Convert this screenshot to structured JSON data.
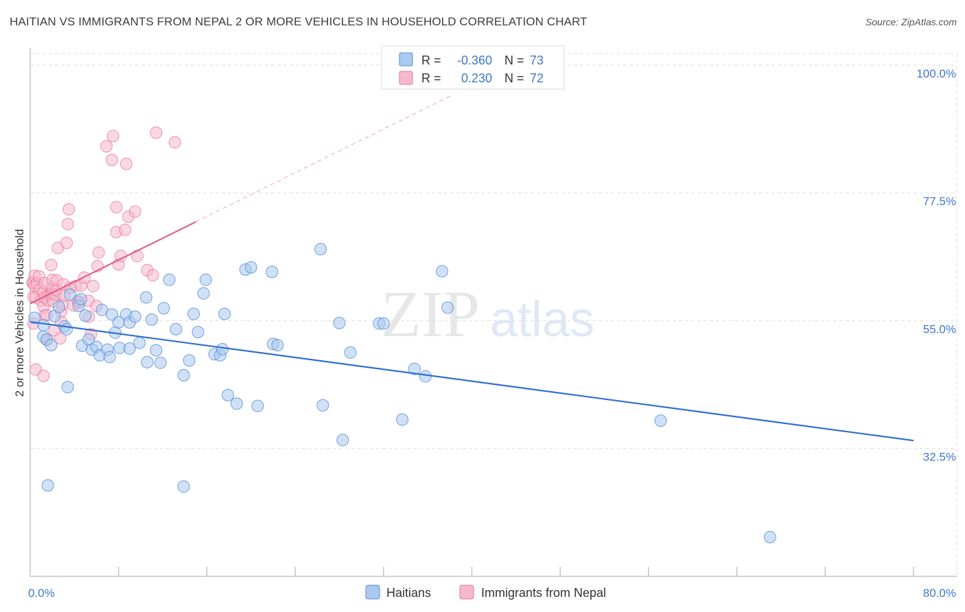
{
  "title": "HAITIAN VS IMMIGRANTS FROM NEPAL 2 OR MORE VEHICLES IN HOUSEHOLD CORRELATION CHART",
  "source": "Source: ZipAtlas.com",
  "watermark": {
    "part1": "ZIP",
    "part2": "atlas"
  },
  "colors": {
    "blue_fill": "#a9c9f0",
    "blue_stroke": "#5a8fd6",
    "blue_line": "#2f6fd0",
    "pink_fill": "#f6b8cc",
    "pink_stroke": "#e8799c",
    "pink_line": "#e0608c",
    "axis_text": "#3f76c8",
    "grid": "#dedede"
  },
  "legend": {
    "rows": [
      {
        "r_label": "R = ",
        "r_value": "-0.360",
        "n_label": "N = ",
        "n_value": "73"
      },
      {
        "r_label": "R = ",
        "r_value": "0.230",
        "n_label": "N = ",
        "n_value": "72"
      }
    ]
  },
  "chart_data": {
    "type": "scatter",
    "title": "HAITIAN VS IMMIGRANTS FROM NEPAL 2 OR MORE VEHICLES IN HOUSEHOLD CORRELATION CHART",
    "xlabel": "",
    "ylabel": "2 or more Vehicles in Household",
    "xlim": [
      0,
      80
    ],
    "ylim": [
      10,
      103
    ],
    "x_tick_labels": [
      "0.0%",
      "80.0%"
    ],
    "y_ticks": [
      32.5,
      55.0,
      77.5,
      100.0
    ],
    "y_tick_labels": [
      "32.5%",
      "55.0%",
      "77.5%",
      "100.0%"
    ],
    "grid": true,
    "legend_position": "top-center",
    "series": [
      {
        "name": "Haitians",
        "r": -0.36,
        "n": 73,
        "trend": {
          "x": [
            0,
            80
          ],
          "y": [
            54.8,
            33.9
          ]
        },
        "points": [
          [
            0.4,
            55.5
          ],
          [
            1.2,
            54.2
          ],
          [
            1.2,
            52.2
          ],
          [
            1.5,
            51.7
          ],
          [
            1.9,
            50.7
          ],
          [
            2.2,
            55.8
          ],
          [
            2.6,
            57.4
          ],
          [
            3.1,
            54.0
          ],
          [
            3.3,
            53.5
          ],
          [
            3.4,
            43.3
          ],
          [
            3.6,
            59.6
          ],
          [
            4.4,
            57.6
          ],
          [
            4.6,
            58.8
          ],
          [
            4.7,
            50.6
          ],
          [
            5.0,
            55.9
          ],
          [
            5.3,
            51.7
          ],
          [
            5.6,
            49.9
          ],
          [
            6.0,
            50.4
          ],
          [
            6.3,
            48.9
          ],
          [
            6.5,
            56.9
          ],
          [
            7.0,
            49.9
          ],
          [
            7.2,
            48.6
          ],
          [
            7.4,
            56.1
          ],
          [
            7.7,
            52.9
          ],
          [
            8.0,
            54.7
          ],
          [
            8.1,
            50.2
          ],
          [
            8.7,
            56.1
          ],
          [
            9.0,
            50.1
          ],
          [
            9.0,
            54.7
          ],
          [
            9.5,
            55.7
          ],
          [
            9.9,
            51.1
          ],
          [
            10.5,
            59.1
          ],
          [
            10.6,
            47.7
          ],
          [
            11.0,
            55.2
          ],
          [
            11.4,
            49.8
          ],
          [
            11.8,
            47.6
          ],
          [
            12.1,
            57.2
          ],
          [
            12.6,
            62.2
          ],
          [
            13.2,
            53.5
          ],
          [
            13.9,
            45.4
          ],
          [
            14.4,
            48.0
          ],
          [
            14.8,
            56.2
          ],
          [
            15.2,
            53.0
          ],
          [
            15.7,
            59.8
          ],
          [
            15.9,
            62.2
          ],
          [
            16.7,
            49.1
          ],
          [
            17.2,
            48.9
          ],
          [
            17.4,
            50.0
          ],
          [
            17.6,
            56.2
          ],
          [
            17.9,
            41.9
          ],
          [
            18.7,
            40.4
          ],
          [
            19.5,
            64.0
          ],
          [
            20.0,
            64.4
          ],
          [
            20.6,
            40.0
          ],
          [
            21.9,
            63.6
          ],
          [
            22.0,
            50.9
          ],
          [
            22.4,
            50.7
          ],
          [
            26.3,
            67.6
          ],
          [
            26.5,
            40.1
          ],
          [
            28.0,
            54.6
          ],
          [
            28.3,
            34.0
          ],
          [
            29.0,
            49.4
          ],
          [
            31.6,
            54.5
          ],
          [
            32.0,
            54.5
          ],
          [
            33.7,
            37.6
          ],
          [
            34.8,
            46.5
          ],
          [
            35.8,
            45.2
          ],
          [
            37.3,
            63.7
          ],
          [
            37.8,
            57.3
          ],
          [
            57.1,
            37.4
          ],
          [
            1.6,
            26.0
          ],
          [
            13.9,
            25.8
          ],
          [
            67.0,
            16.9
          ]
        ]
      },
      {
        "name": "Immigrants from Nepal",
        "r": 0.23,
        "n": 72,
        "trend": {
          "x": [
            0,
            15
          ],
          "y": [
            58.0,
            72.4
          ]
        },
        "trend_extension": {
          "x": [
            15,
            38
          ],
          "y": [
            72.4,
            94.5
          ]
        },
        "points": [
          [
            0.2,
            61.7
          ],
          [
            0.3,
            61.6
          ],
          [
            0.3,
            59.2
          ],
          [
            0.3,
            54.5
          ],
          [
            0.4,
            61.2
          ],
          [
            0.4,
            62.9
          ],
          [
            0.5,
            59.1
          ],
          [
            0.5,
            46.4
          ],
          [
            0.6,
            61.5
          ],
          [
            0.8,
            62.8
          ],
          [
            0.9,
            60.5
          ],
          [
            1.0,
            58.5
          ],
          [
            1.2,
            60.0
          ],
          [
            1.2,
            57.5
          ],
          [
            1.2,
            45.3
          ],
          [
            1.3,
            59.1
          ],
          [
            1.3,
            55.9
          ],
          [
            1.3,
            61.6
          ],
          [
            1.5,
            51.6
          ],
          [
            1.5,
            56.0
          ],
          [
            1.6,
            58.6
          ],
          [
            1.7,
            59.6
          ],
          [
            1.9,
            64.8
          ],
          [
            1.9,
            59.8
          ],
          [
            2.0,
            59.7
          ],
          [
            2.0,
            60.8
          ],
          [
            2.0,
            62.2
          ],
          [
            2.1,
            58.4
          ],
          [
            2.2,
            53.3
          ],
          [
            2.3,
            59.6
          ],
          [
            2.4,
            60.4
          ],
          [
            2.4,
            62.1
          ],
          [
            2.5,
            67.8
          ],
          [
            2.7,
            51.9
          ],
          [
            2.8,
            54.8
          ],
          [
            2.8,
            56.6
          ],
          [
            2.9,
            57.8
          ],
          [
            3.0,
            61.4
          ],
          [
            3.1,
            59.4
          ],
          [
            3.3,
            68.7
          ],
          [
            3.4,
            72.0
          ],
          [
            3.5,
            74.6
          ],
          [
            3.6,
            60.8
          ],
          [
            3.9,
            57.7
          ],
          [
            4.1,
            61.1
          ],
          [
            4.3,
            58.5
          ],
          [
            4.4,
            58.2
          ],
          [
            4.6,
            61.2
          ],
          [
            4.9,
            62.6
          ],
          [
            5.3,
            55.7
          ],
          [
            5.3,
            58.5
          ],
          [
            5.5,
            52.6
          ],
          [
            5.7,
            61.1
          ],
          [
            6.0,
            57.6
          ],
          [
            6.1,
            64.6
          ],
          [
            6.2,
            67.0
          ],
          [
            6.9,
            85.7
          ],
          [
            7.4,
            83.3
          ],
          [
            7.5,
            87.5
          ],
          [
            7.8,
            75.0
          ],
          [
            7.8,
            70.6
          ],
          [
            8.0,
            64.9
          ],
          [
            8.2,
            66.4
          ],
          [
            8.6,
            71.0
          ],
          [
            8.7,
            82.6
          ],
          [
            8.9,
            73.3
          ],
          [
            9.5,
            74.2
          ],
          [
            9.7,
            66.4
          ],
          [
            10.6,
            63.9
          ],
          [
            11.1,
            63.0
          ],
          [
            11.4,
            88.1
          ],
          [
            13.1,
            86.4
          ]
        ]
      }
    ]
  },
  "bottom_legend": {
    "items": [
      {
        "label": "Haitians"
      },
      {
        "label": "Immigrants from Nepal"
      }
    ]
  }
}
